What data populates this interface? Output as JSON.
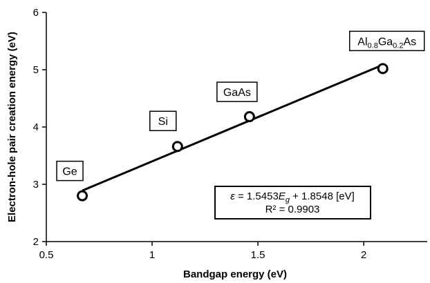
{
  "chart_data": {
    "type": "scatter",
    "xlabel": "Bandgap energy (eV)",
    "ylabel": "Electron-hole pair creation energy (eV)",
    "xlim": [
      0.5,
      2.3
    ],
    "ylim": [
      2,
      6
    ],
    "x_ticks": [
      0.5,
      1,
      1.5,
      2
    ],
    "y_ticks": [
      2,
      3,
      4,
      5,
      6
    ],
    "x_tick_labels": [
      "0.5",
      "1",
      "1.5",
      "2"
    ],
    "y_tick_labels": [
      "2",
      "3",
      "4",
      "5",
      "6"
    ],
    "grid": false,
    "series": [
      {
        "points": [
          {
            "label": "Ge",
            "x": 0.67,
            "y": 2.8
          },
          {
            "label": "Si",
            "x": 1.12,
            "y": 3.66
          },
          {
            "label": "GaAs",
            "x": 1.46,
            "y": 4.18
          },
          {
            "label": "Al0.8Ga0.2As",
            "x": 2.09,
            "y": 5.02
          }
        ]
      }
    ],
    "fit": {
      "slope": 1.5453,
      "intercept": 1.8548,
      "x_range": [
        0.67,
        2.09
      ],
      "equation_parts": {
        "eps": "ε",
        "eq_mid": " = 1.5453",
        "e": "E",
        "g": "g",
        "eq_end": " + 1.8548 [eV]"
      },
      "r2_text": "R² = 0.9903"
    },
    "al_label_parts": {
      "a": "Al",
      "s1": "0.8",
      "b": "Ga",
      "s2": "0.2",
      "c": "As"
    }
  }
}
